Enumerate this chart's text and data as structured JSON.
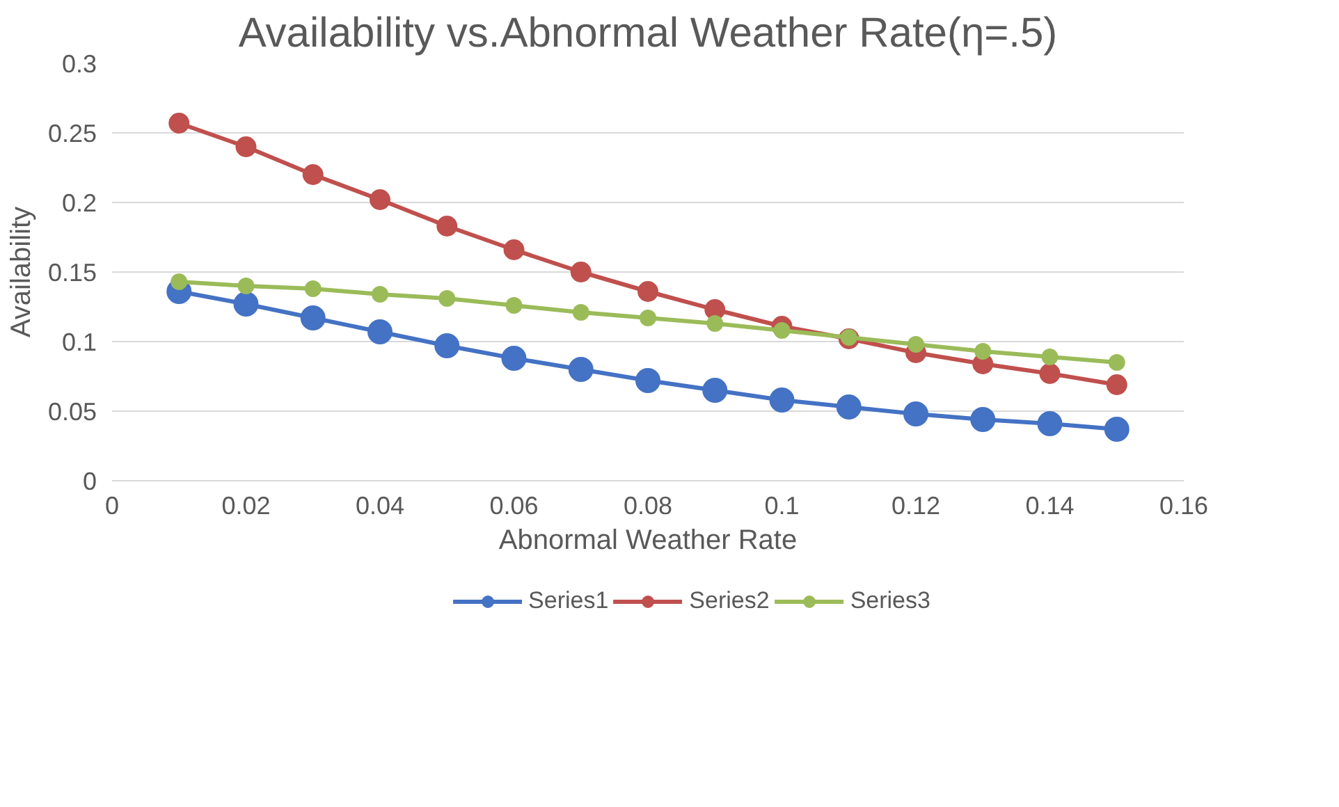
{
  "chart_data": {
    "type": "line",
    "title": "Availability vs.Abnormal Weather Rate(η=.5)",
    "xlabel": "Abnormal Weather Rate",
    "ylabel": "Availability",
    "x": [
      0.01,
      0.02,
      0.03,
      0.04,
      0.05,
      0.06,
      0.07,
      0.08,
      0.09,
      0.1,
      0.11,
      0.12,
      0.13,
      0.14,
      0.15
    ],
    "series": [
      {
        "name": "Series1",
        "color": "#4472c4",
        "values": [
          0.136,
          0.127,
          0.117,
          0.107,
          0.097,
          0.088,
          0.08,
          0.072,
          0.065,
          0.058,
          0.053,
          0.048,
          0.044,
          0.041,
          0.037
        ]
      },
      {
        "name": "Series2",
        "color": "#c0504d",
        "values": [
          0.257,
          0.24,
          0.22,
          0.202,
          0.183,
          0.166,
          0.15,
          0.136,
          0.123,
          0.111,
          0.102,
          0.092,
          0.084,
          0.077,
          0.069
        ]
      },
      {
        "name": "Series3",
        "color": "#9bbb59",
        "values": [
          0.143,
          0.14,
          0.138,
          0.134,
          0.131,
          0.126,
          0.121,
          0.117,
          0.113,
          0.108,
          0.103,
          0.098,
          0.093,
          0.089,
          0.085
        ]
      }
    ],
    "xlim": [
      0,
      0.16
    ],
    "xticks": [
      0,
      0.02,
      0.04,
      0.06,
      0.08,
      0.1,
      0.12,
      0.14,
      0.16
    ],
    "ylim": [
      0,
      0.3
    ],
    "yticks": [
      0,
      0.05,
      0.1,
      0.15,
      0.2,
      0.25,
      0.3
    ],
    "grid": "y",
    "legend": "bottom",
    "marker": "circle",
    "line_style": "solid"
  }
}
